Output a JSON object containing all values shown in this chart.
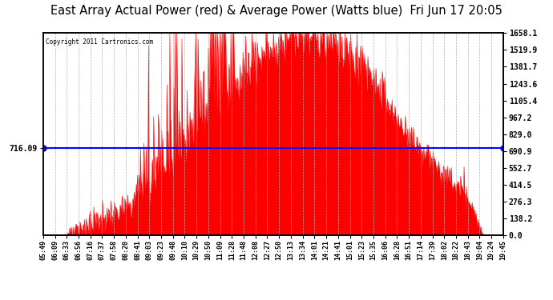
{
  "title": "East Array Actual Power (red) & Average Power (Watts blue)  Fri Jun 17 20:05",
  "copyright": "Copyright 2011 Cartronics.com",
  "avg_power": 716.09,
  "y_max": 1658.1,
  "y_ticks": [
    0.0,
    138.2,
    276.3,
    414.5,
    552.7,
    690.9,
    829.0,
    967.2,
    1105.4,
    1243.6,
    1381.7,
    1519.9,
    1658.1
  ],
  "x_labels": [
    "05:49",
    "06:09",
    "06:33",
    "06:56",
    "07:16",
    "07:37",
    "07:58",
    "08:20",
    "08:41",
    "09:03",
    "09:23",
    "09:48",
    "10:10",
    "10:29",
    "10:50",
    "11:09",
    "11:28",
    "11:48",
    "12:08",
    "12:27",
    "12:50",
    "13:13",
    "13:34",
    "14:01",
    "14:21",
    "14:41",
    "15:01",
    "15:23",
    "15:35",
    "16:06",
    "16:28",
    "16:51",
    "17:14",
    "17:39",
    "18:02",
    "18:22",
    "18:43",
    "19:04",
    "19:24",
    "19:45"
  ],
  "background_color": "#ffffff",
  "bar_color": "#ff0000",
  "line_color": "#0000ff",
  "grid_color": "#b0b0b0",
  "title_fontsize": 10.5,
  "label_fontsize": 7,
  "figsize": [
    6.9,
    3.75
  ],
  "dpi": 100
}
